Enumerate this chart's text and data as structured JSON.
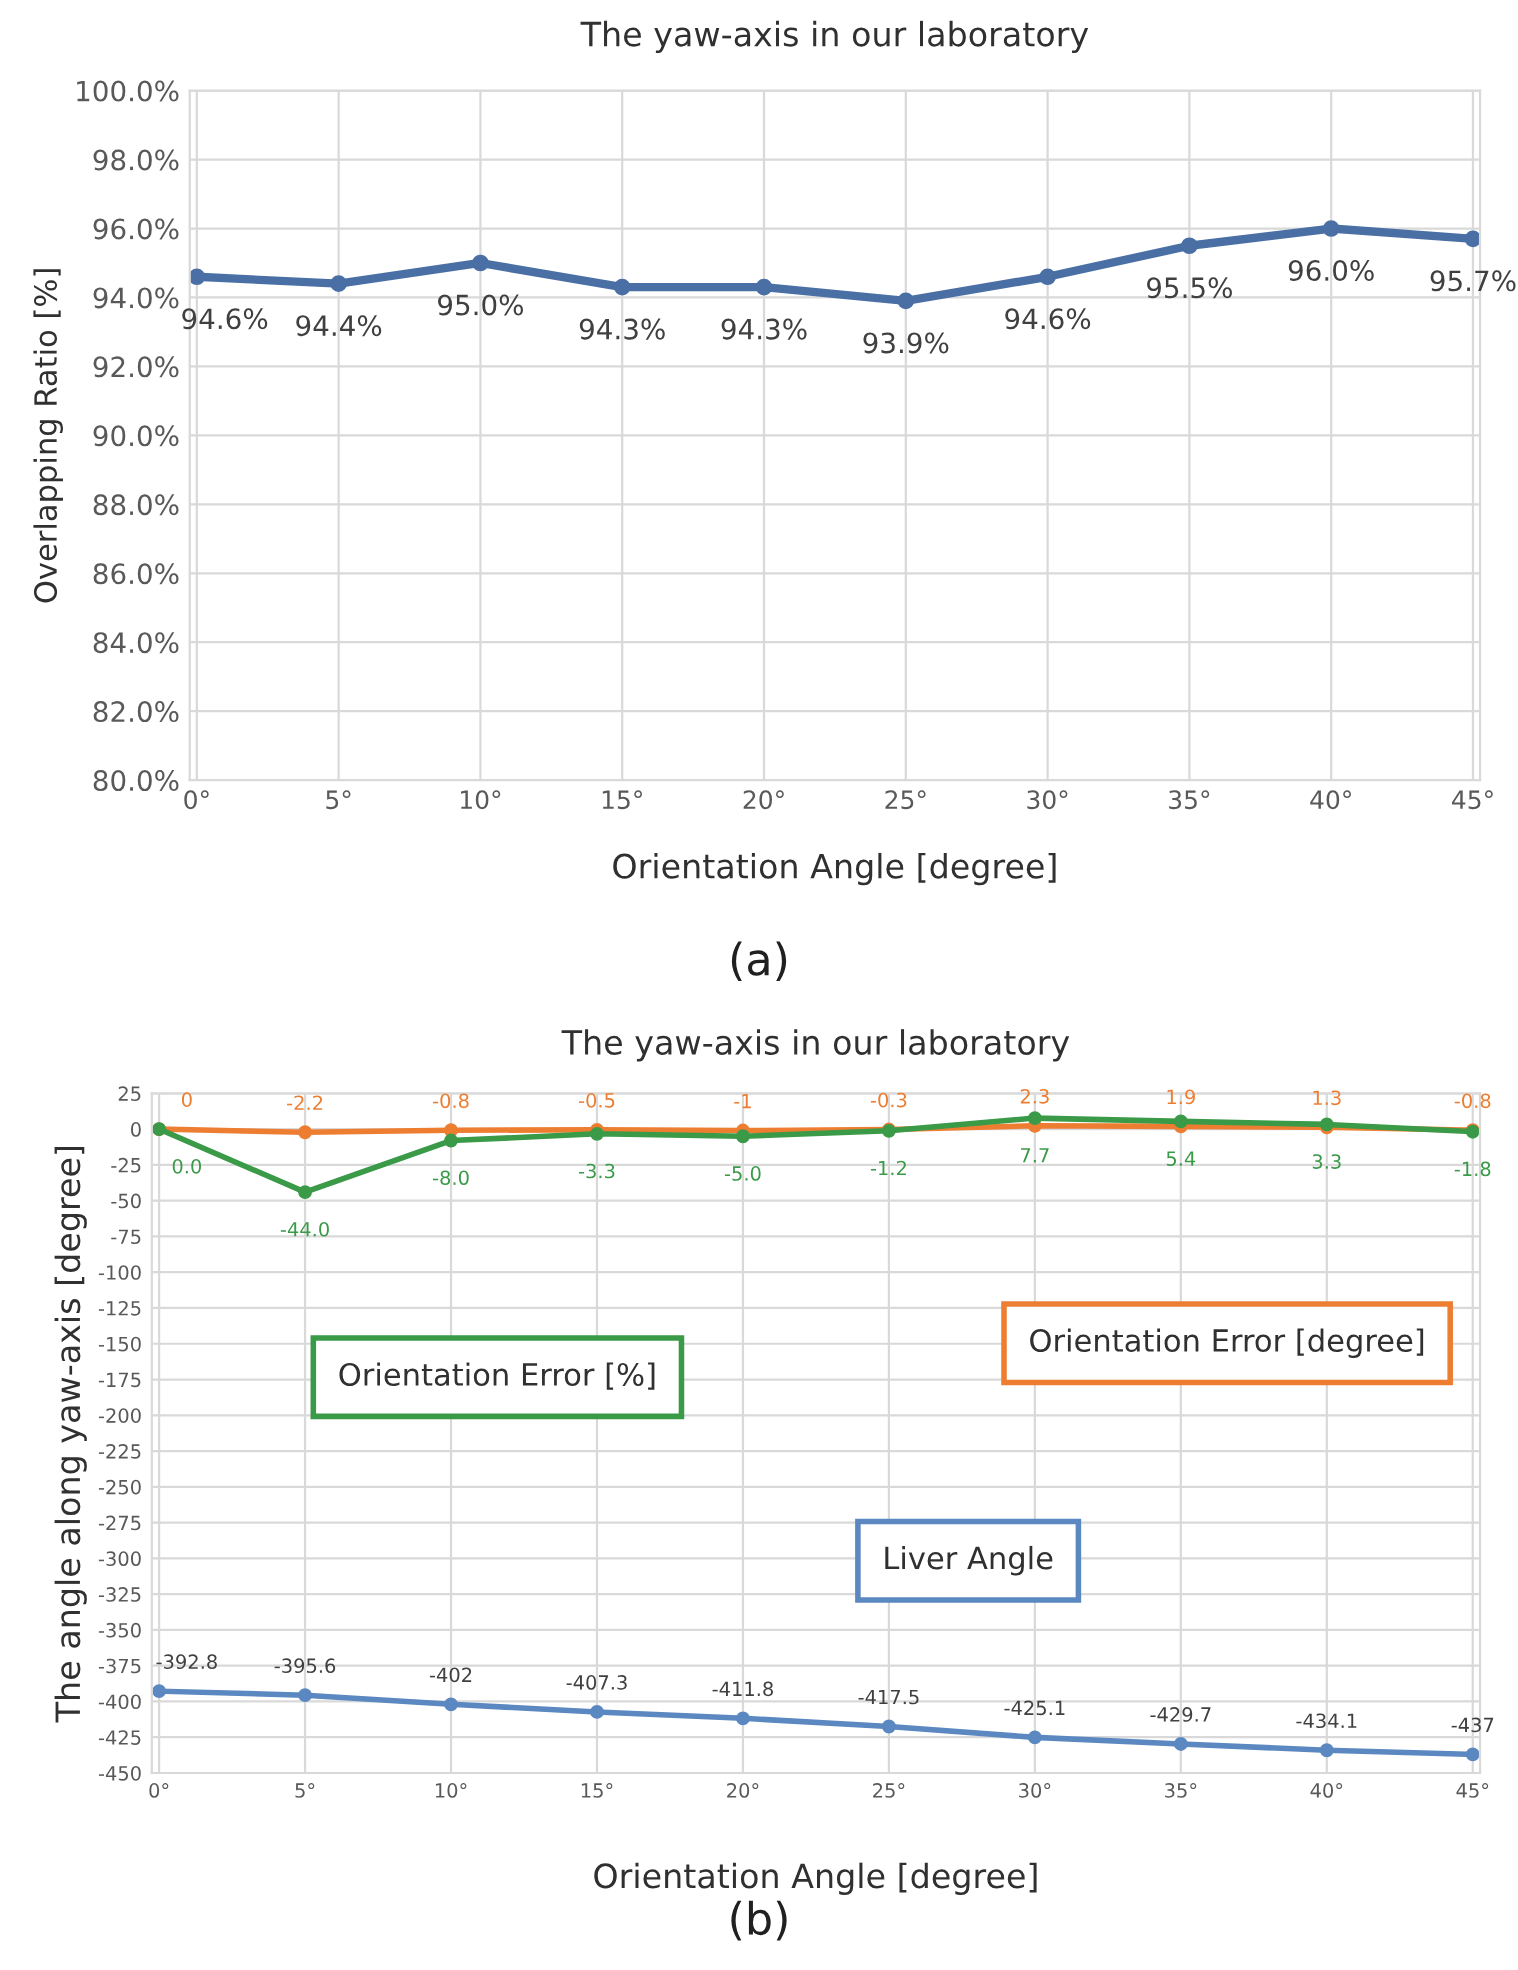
{
  "chart_data": [
    {
      "type": "line",
      "title": "The yaw-axis in our laboratory",
      "xlabel": "Orientation Angle [degree]",
      "ylabel": "Overlapping Ratio [%]",
      "categories": [
        "0°",
        "5°",
        "10°",
        "15°",
        "20°",
        "25°",
        "30°",
        "35°",
        "40°",
        "45°"
      ],
      "series": [
        {
          "color": "#4a6fa5",
          "values": [
            94.6,
            94.4,
            95.0,
            94.3,
            94.3,
            93.9,
            94.6,
            95.5,
            96.0,
            95.7
          ],
          "value_labels": [
            "94.6%",
            "94.4%",
            "95.0%",
            "94.3%",
            "94.3%",
            "93.9%",
            "94.6%",
            "95.5%",
            "96.0%",
            "95.7%"
          ]
        }
      ],
      "ylim": [
        80,
        100
      ],
      "yticks": [
        {
          "value": 80,
          "label": "80.0%"
        },
        {
          "value": 82,
          "label": "82.0%"
        },
        {
          "value": 84,
          "label": "84.0%"
        },
        {
          "value": 86,
          "label": "86.0%"
        },
        {
          "value": 88,
          "label": "88.0%"
        },
        {
          "value": 90,
          "label": "90.0%"
        },
        {
          "value": 92,
          "label": "92.0%"
        },
        {
          "value": 94,
          "label": "94.0%"
        },
        {
          "value": 96,
          "label": "96.0%"
        },
        {
          "value": 98,
          "label": "98.0%"
        },
        {
          "value": 100,
          "label": "100.0%"
        }
      ],
      "grid": true,
      "marker": "circle",
      "line_style": "solid",
      "annotations": [
        "(a)"
      ]
    },
    {
      "type": "line",
      "title": "The yaw-axis in our laboratory",
      "xlabel": "Orientation Angle [degree]",
      "ylabel": "The angle along yaw-axis [degree]",
      "categories": [
        "0°",
        "5°",
        "10°",
        "15°",
        "20°",
        "25°",
        "30°",
        "35°",
        "40°",
        "45°"
      ],
      "series": [
        {
          "name": "Orientation Error [degree]",
          "color": "#ed7d31",
          "values": [
            0,
            -2.2,
            -0.8,
            -0.5,
            -1,
            -0.3,
            2.3,
            1.9,
            1.3,
            -0.8
          ],
          "value_labels": [
            "0",
            "-2.2",
            "-0.8",
            "-0.5",
            "-1",
            "-0.3",
            "2.3",
            "1.9",
            "1.3",
            "-0.8"
          ]
        },
        {
          "name": "Orientation Error [%]",
          "color": "#3a9a48",
          "values": [
            0.0,
            -44.0,
            -8.0,
            -3.3,
            -5.0,
            -1.2,
            7.7,
            5.4,
            3.3,
            -1.8
          ],
          "value_labels": [
            "0.0",
            "-44.0",
            "-8.0",
            "-3.3",
            "-5.0",
            "-1.2",
            "7.7",
            "5.4",
            "3.3",
            "-1.8"
          ]
        },
        {
          "name": "Liver Angle",
          "color": "#5b88c0",
          "values": [
            -392.8,
            -395.6,
            -402,
            -407.3,
            -411.8,
            -417.5,
            -425.1,
            -429.7,
            -434.1,
            -437
          ],
          "value_labels": [
            "-392.8",
            "-395.6",
            "-402",
            "-407.3",
            "-411.8",
            "-417.5",
            "-425.1",
            "-429.7",
            "-434.1",
            "-437"
          ]
        }
      ],
      "ylim": [
        -450,
        25
      ],
      "yticks": [
        25,
        0,
        -25,
        -50,
        -75,
        -100,
        -125,
        -150,
        -175,
        -200,
        -225,
        -250,
        -275,
        -300,
        -325,
        -350,
        -375,
        -400,
        -425,
        -450
      ],
      "grid": true,
      "marker": "circle",
      "line_style": "solid",
      "annotations": [
        "(b)"
      ]
    }
  ]
}
